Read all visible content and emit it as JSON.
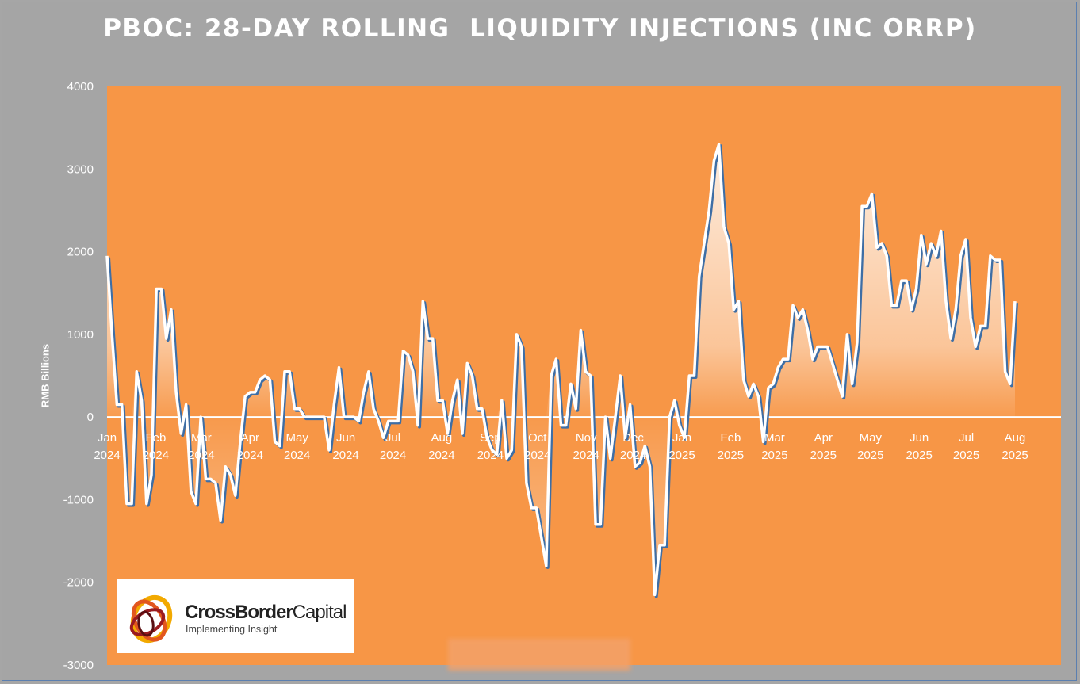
{
  "chart_data": {
    "type": "area",
    "title": "PBOC: 28-DAY ROLLING  LIQUIDITY INJECTIONS (INC ORRP)",
    "ylabel": "RMB Billions",
    "xlabel": "",
    "ylim": [
      -3000,
      4000
    ],
    "yticks": [
      -3000,
      -2000,
      -1000,
      0,
      1000,
      2000,
      3000,
      4000
    ],
    "ytick_labels": [
      "-3000",
      "-2000",
      "-1000",
      "0",
      "1000",
      "2000",
      "3000",
      "4000"
    ],
    "xtick_labels": [
      [
        "Jan",
        "2024"
      ],
      [
        "Feb",
        "2024"
      ],
      [
        "Mar",
        "2024"
      ],
      [
        "Apr",
        "2024"
      ],
      [
        "May",
        "2024"
      ],
      [
        "Jun",
        "2024"
      ],
      [
        "Jul",
        "2024"
      ],
      [
        "Aug",
        "2024"
      ],
      [
        "Sep",
        "2024"
      ],
      [
        "Oct",
        "2024"
      ],
      [
        "Nov",
        "2024"
      ],
      [
        "Dec",
        "2024"
      ],
      [
        "Jan",
        "2025"
      ],
      [
        "Feb",
        "2025"
      ],
      [
        "Mar",
        "2025"
      ],
      [
        "Apr",
        "2025"
      ],
      [
        "May",
        "2025"
      ],
      [
        "Jun",
        "2025"
      ],
      [
        "Jul",
        "2025"
      ],
      [
        "Aug",
        "2025"
      ]
    ],
    "x_start": "2024-01-01",
    "x_end": "2025-08-01",
    "grid": false,
    "legend": "none",
    "series": [
      {
        "values": [
          1950,
          1000,
          150,
          150,
          -1050,
          -1050,
          550,
          200,
          -1050,
          -700,
          1550,
          1550,
          950,
          1300,
          300,
          -200,
          150,
          -900,
          -1050,
          0,
          -750,
          -750,
          -800,
          -1250,
          -600,
          -700,
          -950,
          -300,
          250,
          300,
          300,
          450,
          500,
          450,
          -300,
          -350,
          550,
          550,
          100,
          100,
          0,
          0,
          0,
          0,
          0,
          -400,
          150,
          600,
          0,
          0,
          0,
          -50,
          300,
          550,
          100,
          -50,
          -250,
          -50,
          -50,
          -50,
          800,
          750,
          550,
          -100,
          1400,
          950,
          950,
          200,
          200,
          -200,
          200,
          450,
          -200,
          650,
          500,
          100,
          100,
          -250,
          -400,
          -450,
          200,
          -500,
          -400,
          1000,
          850,
          -800,
          -1100,
          -1100,
          -1450,
          -1800,
          500,
          700,
          -100,
          -100,
          400,
          100,
          1050,
          550,
          500,
          -1300,
          -1300,
          0,
          -500,
          0,
          500,
          -250,
          150,
          -600,
          -550,
          -350,
          -600,
          -2150,
          -1550,
          -1550,
          0,
          200,
          -100,
          -250,
          500,
          500,
          1700,
          2100,
          2500,
          3100,
          3300,
          2300,
          2100,
          1300,
          1400,
          450,
          250,
          400,
          250,
          -300,
          350,
          400,
          600,
          700,
          700,
          1350,
          1200,
          1300,
          1050,
          700,
          850,
          850,
          850,
          650,
          450,
          250,
          1000,
          400,
          900,
          2550,
          2550,
          2700,
          2050,
          2100,
          1950,
          1350,
          1350,
          1650,
          1650,
          1300,
          1550,
          2200,
          1850,
          2100,
          1950,
          2250,
          1400,
          950,
          1300,
          1950,
          2150,
          1200,
          850,
          1100,
          1100,
          1950,
          1900,
          1900,
          550,
          400,
          1400
        ]
      }
    ],
    "colors": {
      "plot_background": "#f79646",
      "outer_background": "#a6a6a6",
      "line": "#ffffff",
      "line_shadow": "#3e6ea5",
      "fill": "#ffffff"
    }
  },
  "logo": {
    "name_bold": "CrossBorder",
    "name_regular": "Capital",
    "tagline": "Implementing Insight"
  }
}
